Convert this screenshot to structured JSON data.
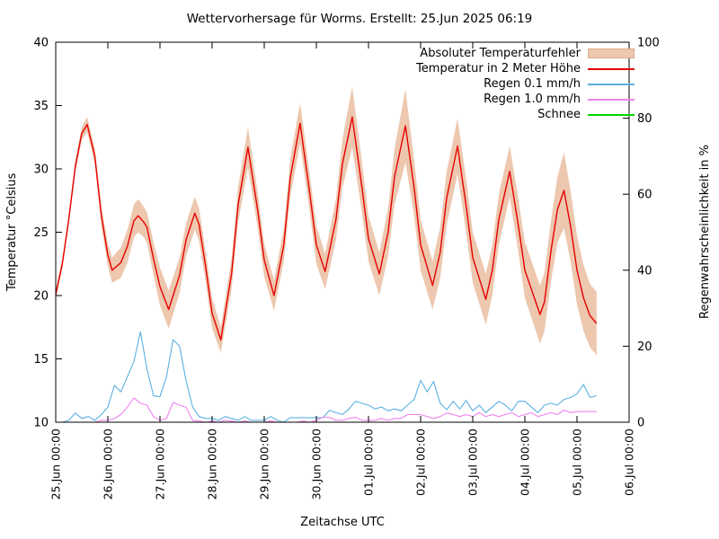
{
  "title": "Wettervorhersage für Worms. Erstellt: 25.Jun 2025 06:19",
  "axes": {
    "x_label": "Zeitachse UTC",
    "y_left_label": "Temperatur °Celsius",
    "y_right_label": "Regenwahrscheinlichkeit in %"
  },
  "legend": {
    "position": "top-right",
    "items": [
      {
        "label": "Absoluter Temperaturfehler",
        "type": "band",
        "color": "#edc7ae",
        "border": "#d8ab8c"
      },
      {
        "label": "Temperatur in 2 Meter Höhe",
        "type": "line",
        "color": "#e60000"
      },
      {
        "label": "Regen 0.1 mm/h",
        "type": "line",
        "color": "#5bb0e2"
      },
      {
        "label": "Regen 1.0 mm/h",
        "type": "line",
        "color": "#ee82ee"
      },
      {
        "label": "Schnee",
        "type": "line",
        "color": "#00d400"
      }
    ]
  },
  "chart_data": {
    "type": "line",
    "title": "Wettervorhersage für Worms. Erstellt: 25.Jun 2025 06:19",
    "grid": false,
    "legend_position": "top-right",
    "x_axis": {
      "label": "Zeitachse UTC",
      "hours_total": 264,
      "tick_step_hours": 24,
      "tick_labels": [
        "25.Jun 00:00",
        "26.Jun 00:00",
        "27.Jun 00:00",
        "28.Jun 00:00",
        "29.Jun 00:00",
        "30.Jun 00:00",
        "01.Jul 00:00",
        "02.Jul 00:00",
        "03.Jul 00:00",
        "04.Jul 00:00",
        "05.Jul 00:00",
        "06.Jul 00:00"
      ]
    },
    "y_left": {
      "label": "Temperatur °Celsius",
      "range": [
        10,
        40
      ],
      "ticks": [
        10,
        15,
        20,
        25,
        30,
        35,
        40
      ]
    },
    "y_right": {
      "label": "Regenwahrscheinlichkeit in %",
      "range": [
        0,
        100
      ],
      "ticks": [
        0,
        20,
        40,
        60,
        80,
        100
      ]
    },
    "series": [
      {
        "name": "Absoluter Temperaturfehler",
        "type": "band",
        "axis": "left",
        "color": "#edc7ae",
        "center_ref": "Temperatur in 2 Meter Höhe",
        "half_width": [
          0.4,
          0.4,
          0.4,
          0.5,
          0.5,
          0.6,
          0.6,
          0.8,
          0.9,
          1.0,
          1.2,
          1.3,
          1.3,
          1.3,
          1.2,
          1.2,
          1.3,
          1.5,
          1.5,
          1.4,
          1.3,
          1.3,
          1.3,
          1.2,
          1.2,
          1.0,
          1.2,
          1.4,
          1.6,
          1.4,
          1.3,
          1.2,
          1.3,
          1.5,
          1.6,
          1.5,
          1.5,
          1.4,
          1.6,
          1.9,
          2.4,
          2.0,
          1.8,
          1.7,
          1.9,
          2.2,
          2.9,
          2.2,
          2.0,
          1.9,
          2.0,
          2.1,
          2.2,
          2.1,
          2.0,
          2.0,
          2.0,
          2.0,
          2.0,
          2.1,
          2.2,
          2.3,
          2.3,
          2.4,
          2.6,
          3.0,
          2.8,
          2.7,
          2.6,
          2.5,
          2.5
        ]
      },
      {
        "name": "Temperatur in 2 Meter Höhe",
        "type": "line",
        "axis": "left",
        "unit": "°C",
        "color": "#e60000",
        "t_hours": [
          0,
          3,
          6,
          9,
          12,
          14.5,
          18,
          21,
          24,
          26,
          30,
          33,
          36,
          38,
          40.5,
          42,
          45,
          48,
          52,
          57,
          60,
          64,
          66,
          69,
          72,
          76,
          81,
          84,
          88.5,
          93,
          96,
          100.5,
          105,
          108,
          112.5,
          117,
          120,
          124,
          129,
          132,
          136.5,
          141,
          144,
          149,
          153,
          156,
          161,
          165,
          168,
          173.5,
          177,
          180,
          185,
          189,
          192,
          198,
          201,
          204,
          209,
          213,
          216,
          223,
          225,
          228,
          231,
          234,
          237,
          240,
          243,
          246,
          249
        ],
        "values": [
          20.1,
          22.5,
          26.0,
          30.2,
          32.8,
          33.5,
          31.0,
          26.3,
          23.2,
          22.0,
          22.6,
          23.9,
          25.9,
          26.3,
          25.8,
          25.4,
          22.9,
          20.7,
          18.9,
          21.6,
          24.4,
          26.5,
          25.6,
          22.3,
          18.6,
          16.5,
          21.8,
          27.2,
          31.7,
          26.7,
          22.8,
          20.0,
          24.0,
          29.3,
          33.6,
          28.0,
          24.0,
          21.9,
          26.0,
          30.4,
          34.1,
          28.5,
          24.5,
          21.7,
          25.0,
          29.4,
          33.4,
          28.5,
          24.0,
          20.8,
          23.4,
          27.7,
          31.8,
          27.0,
          23.0,
          19.7,
          22.0,
          26.0,
          29.8,
          25.5,
          22.0,
          18.5,
          19.5,
          23.5,
          26.8,
          28.3,
          25.5,
          22.0,
          19.8,
          18.4,
          17.8
        ]
      },
      {
        "name": "Regen 0.1 mm/h",
        "type": "line",
        "axis": "right",
        "unit": "%",
        "color": "#5bb0e2",
        "t_step_hours": 3,
        "values": [
          0,
          0,
          0.5,
          2.4,
          1.0,
          1.5,
          0.5,
          2.0,
          4.0,
          9.7,
          8.0,
          12.0,
          16.0,
          23.8,
          14.0,
          7.0,
          6.7,
          12.0,
          21.7,
          20.0,
          11.0,
          4.0,
          1.5,
          1.0,
          1.0,
          0.5,
          1.5,
          1.0,
          0.5,
          1.5,
          0.5,
          0.5,
          0.5,
          1.5,
          0.5,
          0.0,
          1.2,
          1.2,
          1.2,
          1.2,
          1.2,
          1.2,
          3.1,
          2.5,
          2.0,
          3.5,
          5.5,
          5.0,
          4.5,
          3.5,
          4.0,
          3.0,
          3.5,
          3.0,
          4.5,
          6.0,
          11.0,
          8.0,
          10.7,
          5.0,
          3.3,
          5.5,
          3.5,
          5.7,
          3.0,
          4.5,
          2.5,
          4.0,
          5.5,
          4.5,
          3.0,
          5.5,
          5.5,
          4.0,
          2.5,
          4.5,
          5.0,
          4.5,
          6.0,
          6.5,
          7.5,
          9.9,
          6.5,
          7.0
        ]
      },
      {
        "name": "Regen 1.0 mm/h",
        "type": "line",
        "axis": "right",
        "unit": "%",
        "color": "#ee82ee",
        "t_step_hours": 3,
        "values": [
          0,
          0,
          0,
          0,
          0,
          0,
          0,
          0.5,
          0.5,
          1.0,
          2.0,
          4.0,
          6.4,
          5.0,
          4.5,
          1.5,
          0.5,
          1.0,
          5.2,
          4.5,
          4.0,
          0.5,
          0.3,
          0,
          0.3,
          0,
          0.5,
          0.3,
          0,
          0.3,
          0,
          0,
          0,
          0.3,
          0,
          0,
          0,
          0,
          0.3,
          0,
          0.5,
          1.3,
          1.3,
          0.5,
          0.5,
          1.0,
          1.3,
          0.5,
          0.5,
          0.5,
          1.0,
          0.5,
          1.0,
          1.0,
          2.0,
          2.0,
          2.0,
          1.5,
          1.0,
          1.5,
          2.4,
          2.0,
          1.5,
          2.0,
          1.5,
          2.5,
          1.5,
          2.0,
          1.5,
          2.0,
          2.5,
          1.5,
          2.0,
          2.5,
          1.5,
          2.0,
          2.5,
          2.0,
          3.2,
          2.5,
          2.8,
          2.8,
          2.8,
          2.8
        ]
      },
      {
        "name": "Schnee",
        "type": "line",
        "axis": "right",
        "unit": "%",
        "color": "#00d400",
        "visible_in_plot": false,
        "values": []
      }
    ]
  }
}
